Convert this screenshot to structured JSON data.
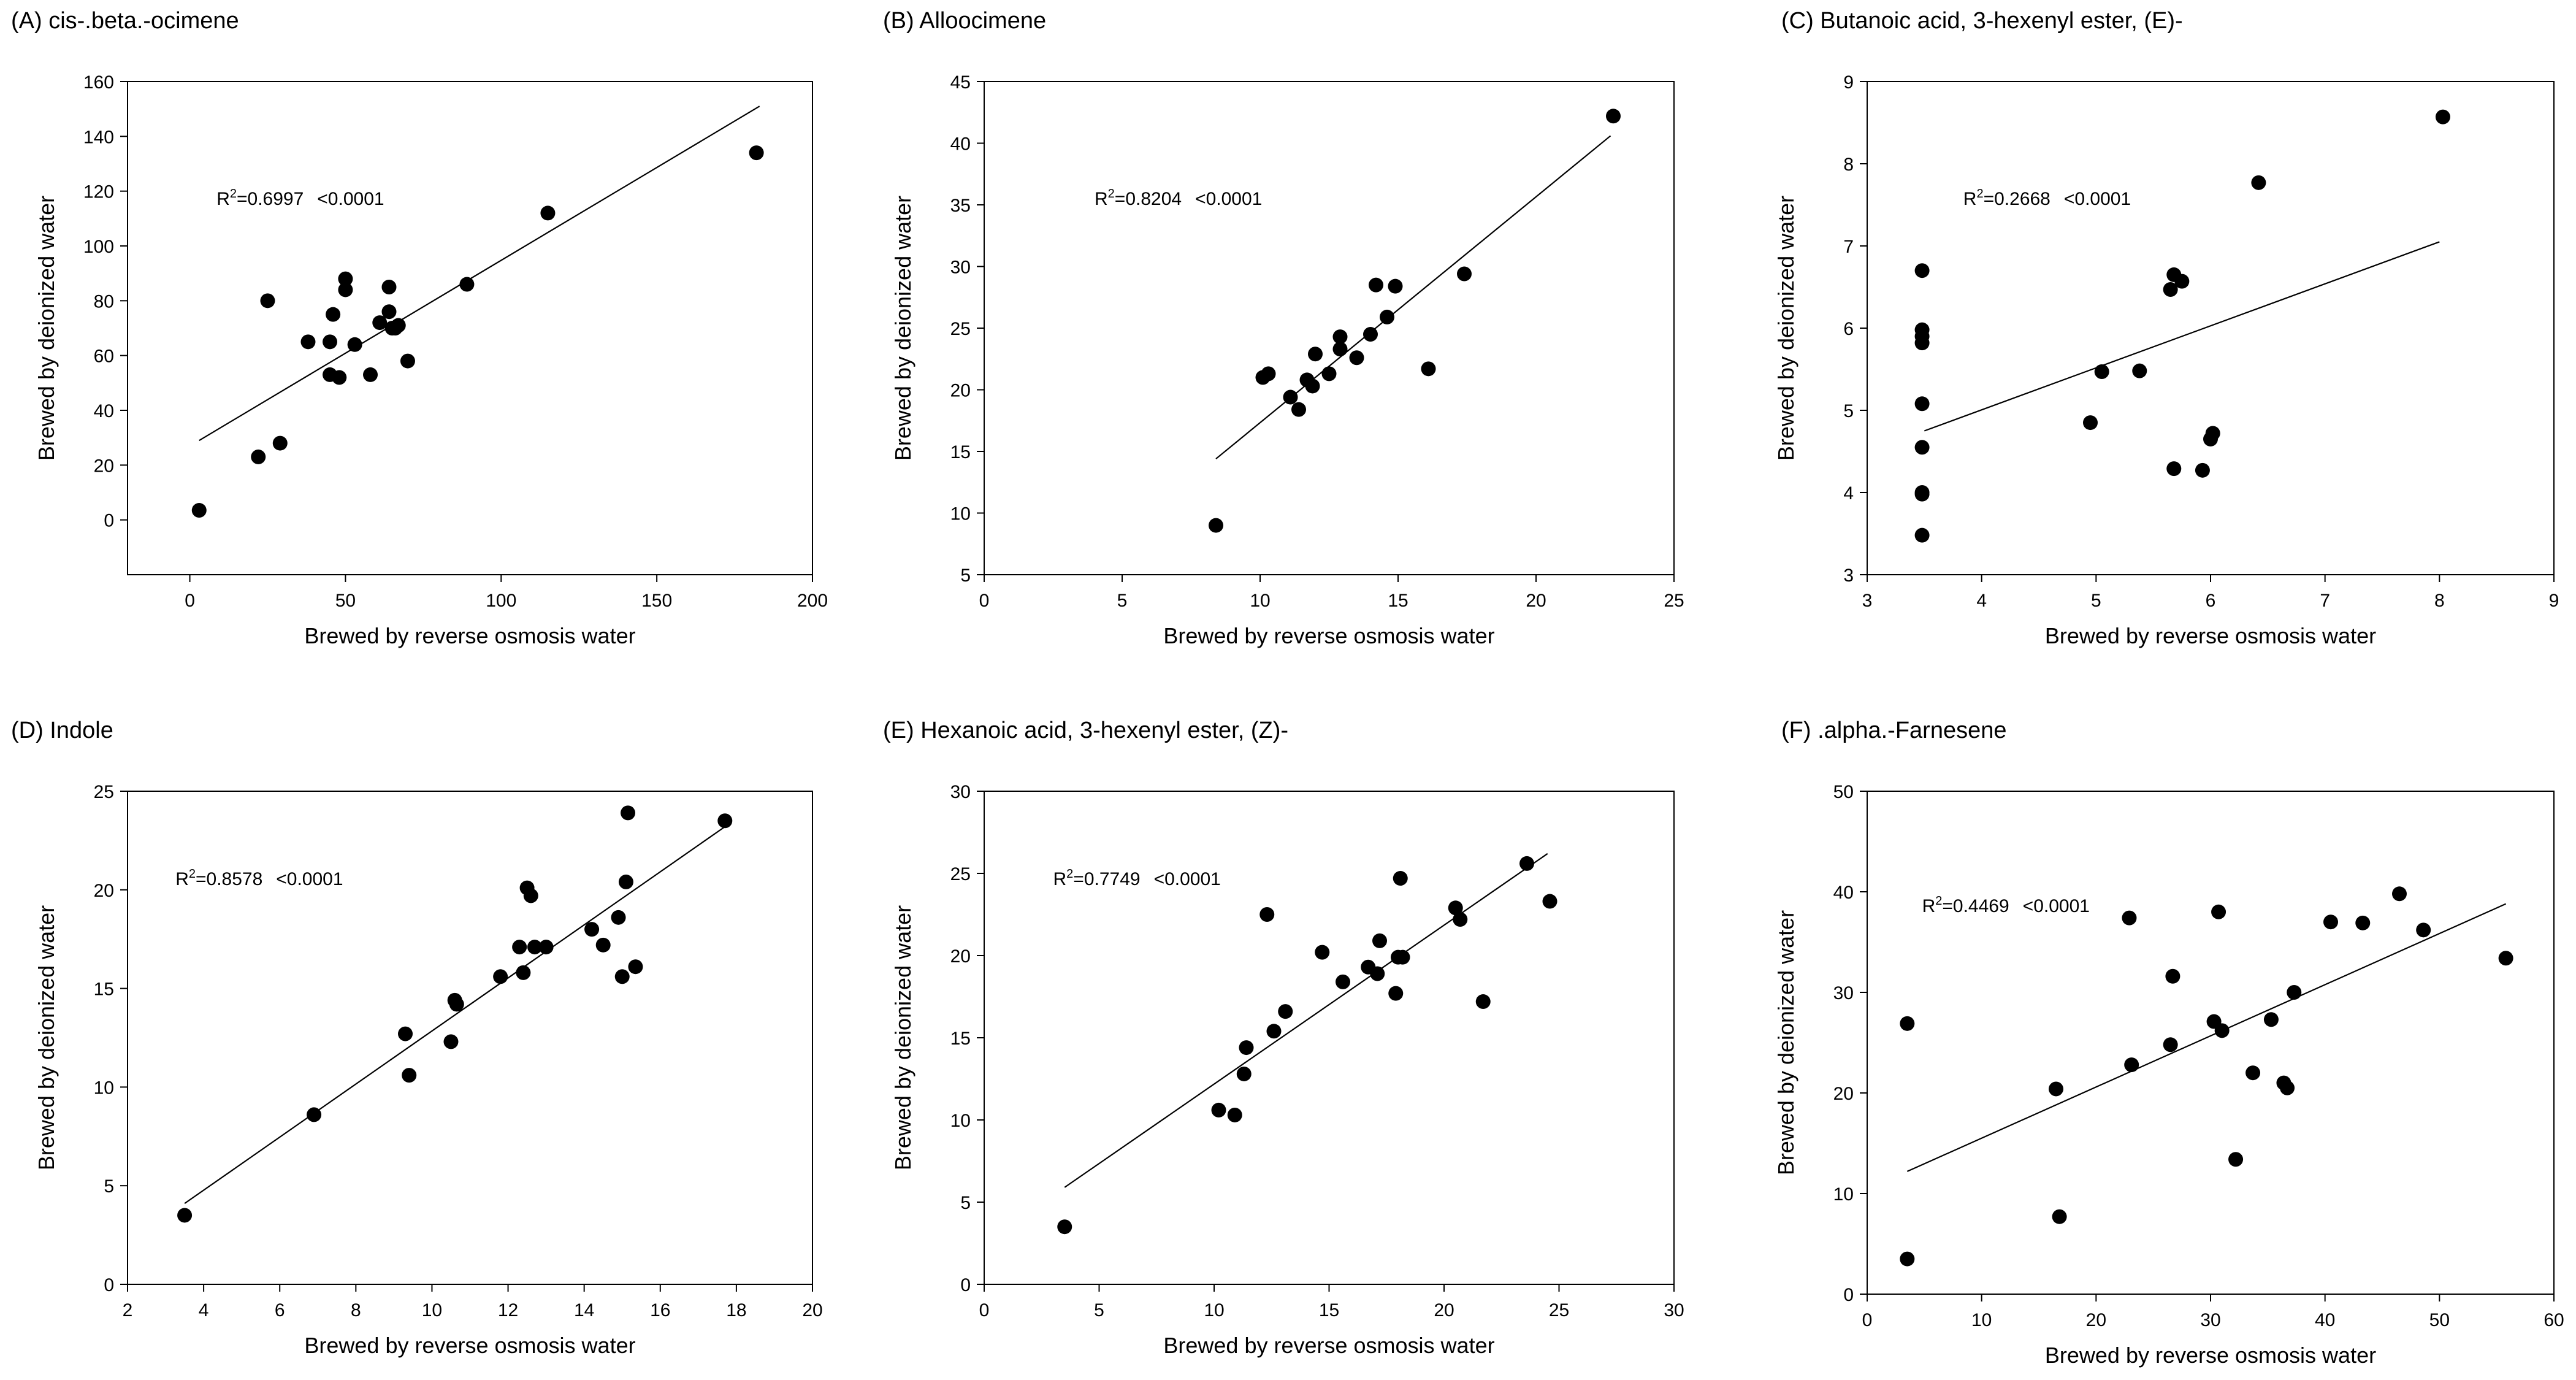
{
  "figure": {
    "xlabel": "Brewed by reverse osmosis water",
    "ylabel": "Brewed by deionized water"
  },
  "chart_data": [
    {
      "type": "scatter",
      "panel": "A",
      "title": "(A) cis-.beta.-ocimene",
      "xlabel": "Brewed by reverse osmosis water",
      "ylabel": "Brewed by deionized water",
      "xlim": [
        -20,
        200
      ],
      "ylim": [
        -20,
        160
      ],
      "xticks": [
        0,
        50,
        100,
        150,
        200
      ],
      "yticks": [
        0,
        20,
        40,
        60,
        80,
        100,
        120,
        140,
        160
      ],
      "r2_label": "=0.6997",
      "p_label": "<0.0001",
      "fit": [
        [
          3,
          29
        ],
        [
          183,
          151
        ]
      ],
      "points": [
        [
          3,
          3.5
        ],
        [
          22,
          23
        ],
        [
          25,
          80
        ],
        [
          29,
          28
        ],
        [
          38,
          65
        ],
        [
          45,
          65
        ],
        [
          45,
          53
        ],
        [
          46,
          75
        ],
        [
          48,
          52
        ],
        [
          50,
          88
        ],
        [
          50,
          84
        ],
        [
          53,
          64
        ],
        [
          58,
          53
        ],
        [
          61,
          72
        ],
        [
          64,
          76
        ],
        [
          64,
          85
        ],
        [
          65,
          70
        ],
        [
          66,
          70
        ],
        [
          67,
          71
        ],
        [
          70,
          58
        ],
        [
          89,
          86
        ],
        [
          115,
          112
        ],
        [
          182,
          134
        ]
      ]
    },
    {
      "type": "scatter",
      "panel": "B",
      "title": "(B) Alloocimene",
      "xlabel": "Brewed by reverse osmosis water",
      "ylabel": "Brewed by deionized water",
      "xlim": [
        0,
        25
      ],
      "ylim": [
        5,
        45
      ],
      "xticks": [
        0,
        5,
        10,
        15,
        20,
        25
      ],
      "yticks": [
        5,
        10,
        15,
        20,
        25,
        30,
        35,
        40,
        45
      ],
      "r2_label": "=0.8204",
      "p_label": "<0.0001",
      "fit": [
        [
          8.4,
          14.4
        ],
        [
          22.7,
          40.6
        ]
      ],
      "points": [
        [
          8.4,
          9
        ],
        [
          10.1,
          21
        ],
        [
          10.3,
          21.3
        ],
        [
          11.1,
          19.4
        ],
        [
          11.4,
          18.4
        ],
        [
          11.7,
          20.8
        ],
        [
          11.9,
          20.3
        ],
        [
          12.0,
          22.9
        ],
        [
          12.5,
          21.3
        ],
        [
          12.9,
          23.3
        ],
        [
          12.9,
          24.3
        ],
        [
          13.5,
          22.6
        ],
        [
          14.0,
          24.5
        ],
        [
          14.2,
          28.5
        ],
        [
          14.6,
          25.9
        ],
        [
          14.9,
          28.4
        ],
        [
          16.1,
          21.7
        ],
        [
          17.4,
          29.4
        ],
        [
          22.8,
          42.2
        ]
      ]
    },
    {
      "type": "scatter",
      "panel": "C",
      "title": "(C) Butanoic acid, 3-hexenyl ester, (E)-",
      "xlabel": "Brewed by reverse osmosis water",
      "ylabel": "Brewed by deionized water",
      "xlim": [
        3,
        9
      ],
      "ylim": [
        3,
        9
      ],
      "xticks": [
        3,
        4,
        5,
        6,
        7,
        8,
        9
      ],
      "yticks": [
        3,
        4,
        5,
        6,
        7,
        8,
        9
      ],
      "r2_label": "=0.2668",
      "p_label": "<0.0001",
      "fit": [
        [
          3.5,
          4.75
        ],
        [
          8.0,
          7.05
        ]
      ],
      "points": [
        [
          3.48,
          3.48
        ],
        [
          3.48,
          3.98
        ],
        [
          3.48,
          4.0
        ],
        [
          3.48,
          4.55
        ],
        [
          3.48,
          5.08
        ],
        [
          3.48,
          5.82
        ],
        [
          3.48,
          5.9
        ],
        [
          3.48,
          5.98
        ],
        [
          3.48,
          6.7
        ],
        [
          4.95,
          4.85
        ],
        [
          5.05,
          5.47
        ],
        [
          5.38,
          5.48
        ],
        [
          5.65,
          6.47
        ],
        [
          5.68,
          6.65
        ],
        [
          5.68,
          4.29
        ],
        [
          5.75,
          6.57
        ],
        [
          5.93,
          4.27
        ],
        [
          6.0,
          4.65
        ],
        [
          6.02,
          4.72
        ],
        [
          6.42,
          7.77
        ],
        [
          8.03,
          8.57
        ]
      ]
    },
    {
      "type": "scatter",
      "panel": "D",
      "title": "(D) Indole",
      "xlabel": "Brewed by reverse osmosis water",
      "ylabel": "Brewed by deionized water",
      "xlim": [
        2,
        20
      ],
      "ylim": [
        0,
        25
      ],
      "xticks": [
        2,
        4,
        6,
        8,
        10,
        12,
        14,
        16,
        18,
        20
      ],
      "yticks": [
        0,
        5,
        10,
        15,
        20,
        25
      ],
      "r2_label": "=0.8578",
      "p_label": "<0.0001",
      "fit": [
        [
          3.5,
          4.1
        ],
        [
          17.7,
          23.2
        ]
      ],
      "points": [
        [
          3.5,
          3.5
        ],
        [
          6.9,
          8.6
        ],
        [
          9.3,
          12.7
        ],
        [
          9.4,
          10.6
        ],
        [
          10.5,
          12.3
        ],
        [
          10.6,
          14.4
        ],
        [
          10.65,
          14.2
        ],
        [
          11.8,
          15.6
        ],
        [
          12.3,
          17.1
        ],
        [
          12.4,
          15.8
        ],
        [
          12.5,
          20.1
        ],
        [
          12.6,
          19.7
        ],
        [
          12.7,
          17.1
        ],
        [
          13.0,
          17.1
        ],
        [
          14.2,
          18.0
        ],
        [
          14.5,
          17.2
        ],
        [
          14.9,
          18.6
        ],
        [
          15.0,
          15.6
        ],
        [
          15.1,
          20.4
        ],
        [
          15.15,
          23.9
        ],
        [
          15.35,
          16.1
        ],
        [
          17.7,
          23.5
        ]
      ]
    },
    {
      "type": "scatter",
      "panel": "E",
      "title": "(E) Hexanoic acid, 3-hexenyl ester, (Z)-",
      "xlabel": "Brewed by reverse osmosis water",
      "ylabel": "Brewed by deionized water",
      "xlim": [
        0,
        30
      ],
      "ylim": [
        0,
        30
      ],
      "xticks": [
        0,
        5,
        10,
        15,
        20,
        25,
        30
      ],
      "yticks": [
        0,
        5,
        10,
        15,
        20,
        25,
        30
      ],
      "r2_label": "=0.7749",
      "p_label": "<0.0001",
      "fit": [
        [
          3.5,
          5.9
        ],
        [
          24.5,
          26.2
        ]
      ],
      "points": [
        [
          3.5,
          3.5
        ],
        [
          10.2,
          10.6
        ],
        [
          10.9,
          10.3
        ],
        [
          11.3,
          12.8
        ],
        [
          11.4,
          14.4
        ],
        [
          12.3,
          22.5
        ],
        [
          12.6,
          15.4
        ],
        [
          13.1,
          16.6
        ],
        [
          14.7,
          20.2
        ],
        [
          15.6,
          18.4
        ],
        [
          16.7,
          19.3
        ],
        [
          17.1,
          18.9
        ],
        [
          17.2,
          20.9
        ],
        [
          17.9,
          17.7
        ],
        [
          18.0,
          19.9
        ],
        [
          18.2,
          19.9
        ],
        [
          18.1,
          24.7
        ],
        [
          20.5,
          22.9
        ],
        [
          20.7,
          22.2
        ],
        [
          21.7,
          17.2
        ],
        [
          23.6,
          25.6
        ],
        [
          24.6,
          23.3
        ]
      ]
    },
    {
      "type": "scatter",
      "panel": "F",
      "title": "(F) .alpha.-Farnesene",
      "xlabel": "Brewed by reverse osmosis water",
      "ylabel": "Brewed by deionized water",
      "xlim": [
        0,
        60
      ],
      "ylim": [
        0,
        50
      ],
      "xticks": [
        0,
        10,
        20,
        30,
        40,
        50,
        60
      ],
      "yticks": [
        0,
        10,
        20,
        30,
        40,
        50
      ],
      "r2_label": "=0.4469",
      "p_label": "<0.0001",
      "fit": [
        [
          3.5,
          12.2
        ],
        [
          55.8,
          38.8
        ]
      ],
      "points": [
        [
          3.5,
          3.5
        ],
        [
          3.5,
          26.9
        ],
        [
          16.5,
          20.4
        ],
        [
          16.8,
          7.7
        ],
        [
          22.9,
          37.4
        ],
        [
          23.1,
          22.8
        ],
        [
          26.5,
          24.8
        ],
        [
          26.7,
          31.6
        ],
        [
          30.3,
          27.1
        ],
        [
          30.7,
          38.0
        ],
        [
          31.0,
          26.2
        ],
        [
          32.2,
          13.4
        ],
        [
          33.7,
          22.0
        ],
        [
          35.3,
          27.3
        ],
        [
          36.4,
          21.0
        ],
        [
          36.7,
          20.5
        ],
        [
          37.3,
          30.0
        ],
        [
          40.5,
          37.0
        ],
        [
          43.3,
          36.9
        ],
        [
          46.5,
          39.8
        ],
        [
          48.6,
          36.2
        ],
        [
          55.8,
          33.4
        ]
      ]
    }
  ]
}
